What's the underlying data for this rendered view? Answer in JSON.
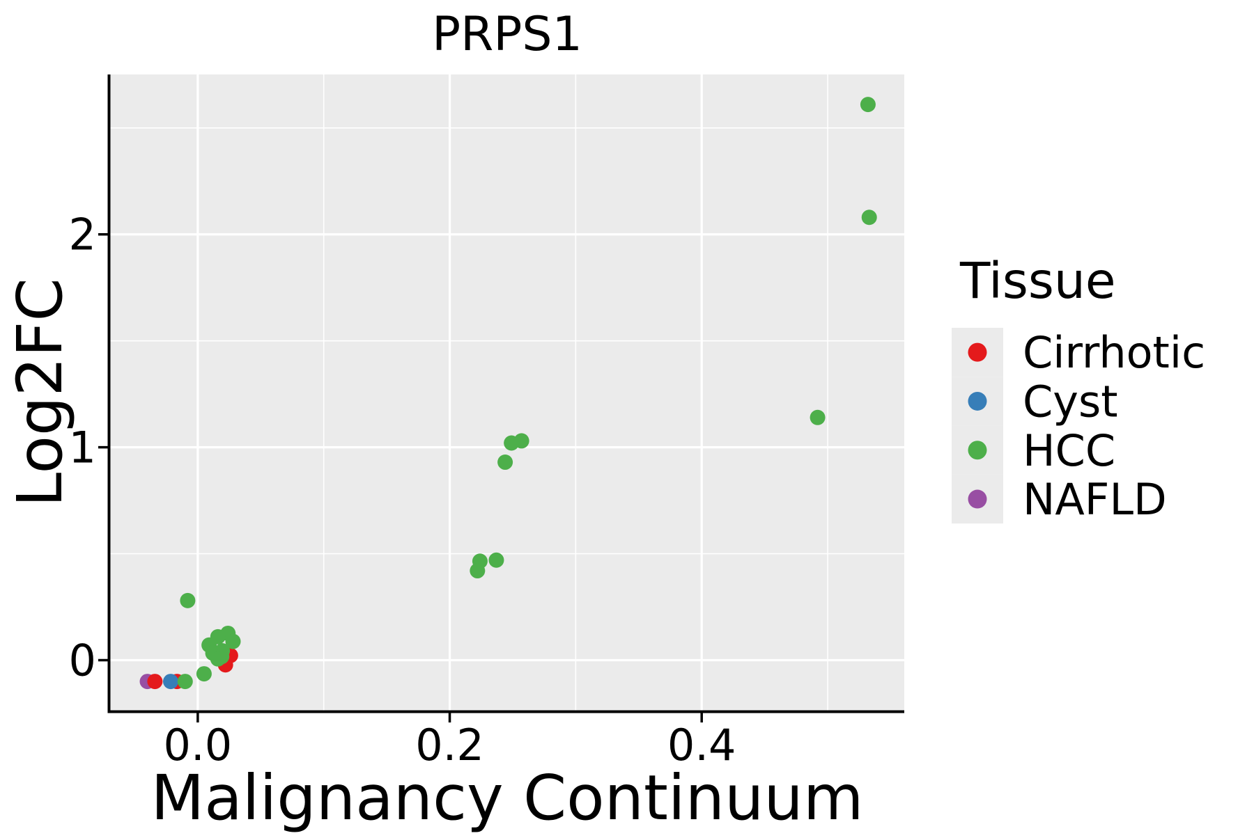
{
  "figure": {
    "title": "PRPS1",
    "x_label": "Malignancy Continuum",
    "y_label": "Log2FC"
  },
  "legend": {
    "title": "Tissue",
    "entries": [
      {
        "label": "Cirrhotic",
        "color": "#E41A1C"
      },
      {
        "label": "Cyst",
        "color": "#377EB8"
      },
      {
        "label": "HCC",
        "color": "#4DAF4A"
      },
      {
        "label": "NAFLD",
        "color": "#984EA3"
      }
    ]
  },
  "colors": {
    "panel_background": "#EBEBEB",
    "gridline": "#FFFFFF",
    "axis_line": "#000000",
    "text": "#000000",
    "figure_background": "#FFFFFF"
  },
  "chart_data": {
    "type": "scatter",
    "title": "PRPS1",
    "xlabel": "Malignancy Continuum",
    "ylabel": "Log2FC",
    "xlim": [
      -0.0696,
      0.5608
    ],
    "ylim": [
      -0.237,
      2.751
    ],
    "x_ticks": {
      "major": [
        0.0,
        0.2,
        0.4
      ],
      "labels": [
        "0.0",
        "0.2",
        "0.4"
      ],
      "minor": [
        0.1,
        0.3,
        0.5
      ]
    },
    "y_ticks": {
      "major": [
        0,
        1,
        2
      ],
      "labels": [
        "0",
        "1",
        "2"
      ],
      "minor": [
        0.5,
        1.5,
        2.5
      ]
    },
    "grid": {
      "major": true,
      "minor": true
    },
    "legend_position": "right",
    "legend_title": "Tissue",
    "series": [
      {
        "name": "Cirrhotic",
        "color": "#E41A1C",
        "points": [
          [
            -0.034,
            -0.1
          ],
          [
            -0.0165,
            -0.1
          ],
          [
            0.026,
            0.022
          ],
          [
            0.022,
            -0.022
          ]
        ]
      },
      {
        "name": "Cyst",
        "color": "#377EB8",
        "points": [
          [
            -0.0215,
            -0.1
          ]
        ]
      },
      {
        "name": "HCC",
        "color": "#4DAF4A",
        "points": [
          [
            0.532,
            2.61
          ],
          [
            0.533,
            2.08
          ],
          [
            0.492,
            1.14
          ],
          [
            0.257,
            1.03
          ],
          [
            0.249,
            1.02
          ],
          [
            0.244,
            0.93
          ],
          [
            0.237,
            0.47
          ],
          [
            0.224,
            0.465
          ],
          [
            0.222,
            0.42
          ],
          [
            -0.008,
            0.28
          ],
          [
            0.024,
            0.126
          ],
          [
            0.016,
            0.11
          ],
          [
            0.028,
            0.088
          ],
          [
            0.009,
            0.071
          ],
          [
            0.0195,
            0.044
          ],
          [
            0.012,
            0.033
          ],
          [
            0.019,
            0.017
          ],
          [
            0.016,
            0.006
          ],
          [
            0.005,
            -0.064
          ],
          [
            -0.01,
            -0.1
          ]
        ]
      },
      {
        "name": "NAFLD",
        "color": "#984EA3",
        "points": [
          [
            -0.04,
            -0.1
          ]
        ]
      }
    ]
  }
}
